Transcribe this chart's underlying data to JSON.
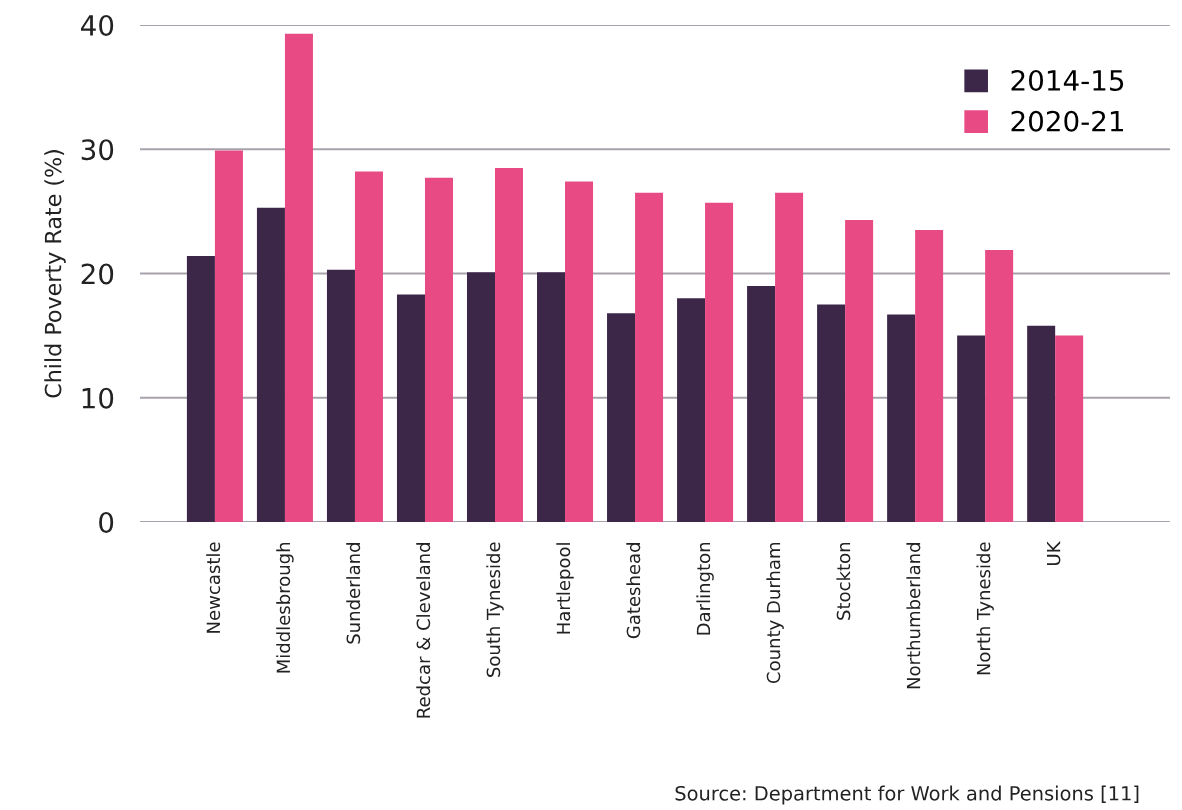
{
  "chart_data": {
    "type": "bar",
    "ylabel": "Child Poverty Rate (%)",
    "categories": [
      "Newcastle",
      "Middlesbrough",
      "Sunderland",
      "Redcar & Cleveland",
      "South Tyneside",
      "Hartlepool",
      "Gateshead",
      "Darlington",
      "County Durham",
      "Stockton",
      "Northumberland",
      "North Tyneside",
      "UK"
    ],
    "series": [
      {
        "name": "2014-15",
        "color": "#3c2749",
        "values": [
          21.4,
          25.3,
          20.3,
          18.3,
          20.1,
          20.1,
          16.8,
          18.0,
          19.0,
          17.5,
          16.7,
          15.0,
          15.8
        ]
      },
      {
        "name": "2020-21",
        "color": "#e84a84",
        "values": [
          29.9,
          39.3,
          28.2,
          27.7,
          28.5,
          27.4,
          26.5,
          25.7,
          26.5,
          24.3,
          23.5,
          21.9,
          15.0
        ]
      }
    ],
    "ylim": [
      0,
      40
    ],
    "yticks": [
      0,
      10,
      20,
      30,
      40
    ],
    "grid": "y",
    "legend": "top right",
    "annotations": [
      "Source: Department for Work and Pensions [11]"
    ]
  }
}
